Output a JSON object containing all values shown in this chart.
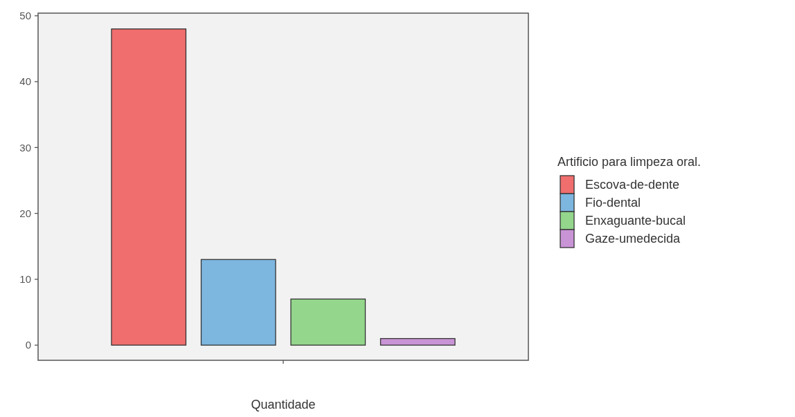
{
  "chart_data": {
    "type": "bar",
    "xlabel": "Quantidade",
    "legend_title": "Artificio para limpeza oral.",
    "categories": [
      null
    ],
    "series": [
      {
        "name": "Escova-de-dente",
        "color": "#f06e6e",
        "values": [
          48
        ]
      },
      {
        "name": "Fio-dental",
        "color": "#7db6df",
        "values": [
          13
        ]
      },
      {
        "name": "Enxaguante-bucal",
        "color": "#93d68c",
        "values": [
          7
        ]
      },
      {
        "name": "Gaze-umedecida",
        "color": "#c994d6",
        "values": [
          1
        ]
      }
    ],
    "ylim": [
      -2.3,
      50.4
    ],
    "yticks": [
      0,
      10,
      20,
      30,
      40,
      50
    ],
    "grid": false,
    "legend": "right"
  }
}
